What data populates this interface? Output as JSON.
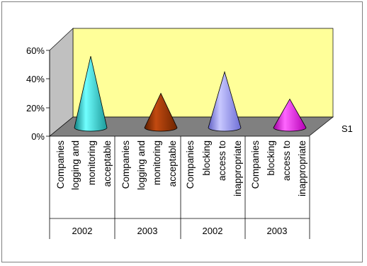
{
  "chart_data": {
    "type": "bar",
    "subtype": "3d-cone",
    "categories": [
      {
        "label_lines": [
          "Companies",
          "logging and",
          "monitoring",
          "acceptable"
        ],
        "year": "2002"
      },
      {
        "label_lines": [
          "Companies",
          "logging and",
          "monitoring",
          "acceptable"
        ],
        "year": "2003"
      },
      {
        "label_lines": [
          "Companies",
          "blocking",
          "access to",
          "inappropriate"
        ],
        "year": "2002"
      },
      {
        "label_lines": [
          "Companies",
          "blocking",
          "access to",
          "inappropriate"
        ],
        "year": "2003"
      }
    ],
    "series": [
      {
        "name": "S1",
        "values": [
          0.5,
          0.24,
          0.39,
          0.2
        ],
        "colors": [
          "#33CCCC",
          "#993300",
          "#9999FF",
          "#FF00FF"
        ]
      }
    ],
    "y_ticks": [
      "0%",
      "20%",
      "40%",
      "60%"
    ],
    "ylim": [
      0,
      0.6
    ],
    "grid": false,
    "wall_color": "#FFFF99",
    "floor_color": "#808080",
    "legend": "none"
  }
}
